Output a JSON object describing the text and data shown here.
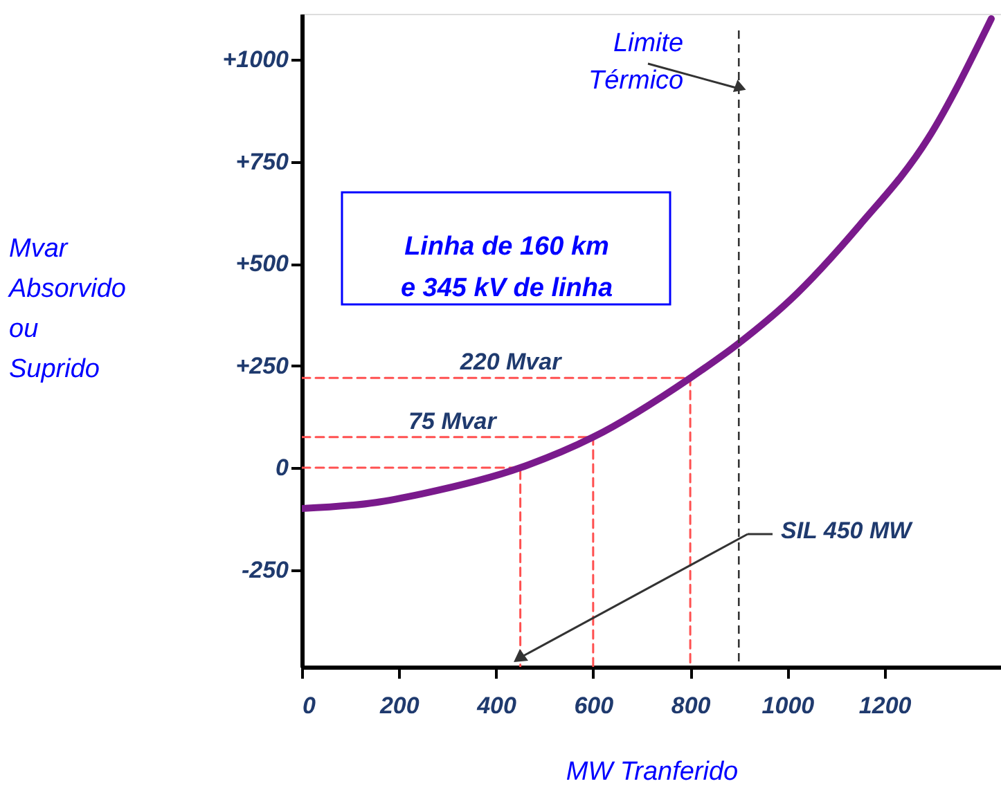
{
  "chart_data": {
    "type": "line",
    "xlabel": "MW Tranferido",
    "ylabel": "Mvar Absorvido ou Suprido",
    "xlim": [
      0,
      1440
    ],
    "ylim": [
      -488,
      1112
    ],
    "xticks": [
      0,
      200,
      400,
      600,
      800,
      {
        "value": 1000,
        "label": "1000"
      },
      {
        "value": 1200,
        "label": "1200"
      }
    ],
    "yticks": [
      {
        "value": -250,
        "label": "-250"
      },
      0,
      {
        "value": 250,
        "label": "+250"
      },
      {
        "value": 500,
        "label": "+500"
      },
      {
        "value": 750,
        "label": "+750"
      },
      {
        "value": 1000,
        "label": "+1000"
      }
    ],
    "grid": false,
    "series": [
      {
        "type": "line",
        "color": "#7a1a8c",
        "line_style": "solid",
        "x": [
          0,
          153,
          247,
          450,
          600,
          800,
          900,
          1005,
          1148,
          1290,
          1420
        ],
        "values": [
          -100,
          -85,
          -64,
          0,
          75,
          220,
          305,
          410,
          593,
          807,
          1100
        ]
      },
      {
        "type": "line",
        "color": "#ff5050",
        "line_style": "dashed",
        "x": [
          0,
          450,
          450
        ],
        "values": [
          0,
          0,
          -488
        ]
      },
      {
        "type": "line",
        "color": "#ff5050",
        "line_style": "dashed",
        "x": [
          0,
          600,
          600
        ],
        "values": [
          75,
          75,
          -488
        ]
      },
      {
        "type": "line",
        "color": "#ff5050",
        "line_style": "dashed",
        "x": [
          0,
          800,
          800
        ],
        "values": [
          220,
          220,
          -488
        ]
      }
    ],
    "ref_lines": [
      {
        "axis": "x",
        "value": 900,
        "label": "Limite\nTérmico",
        "color": "#333333",
        "line_style": "dashed"
      }
    ],
    "annotations": [
      "Linha de 160 km\ne 345 kV de linha",
      {
        "text": "220 Mvar",
        "x": 430,
        "y": 220
      },
      {
        "text": "75 Mvar",
        "x": 310,
        "y": 75
      },
      "SIL 450 MW"
    ]
  }
}
